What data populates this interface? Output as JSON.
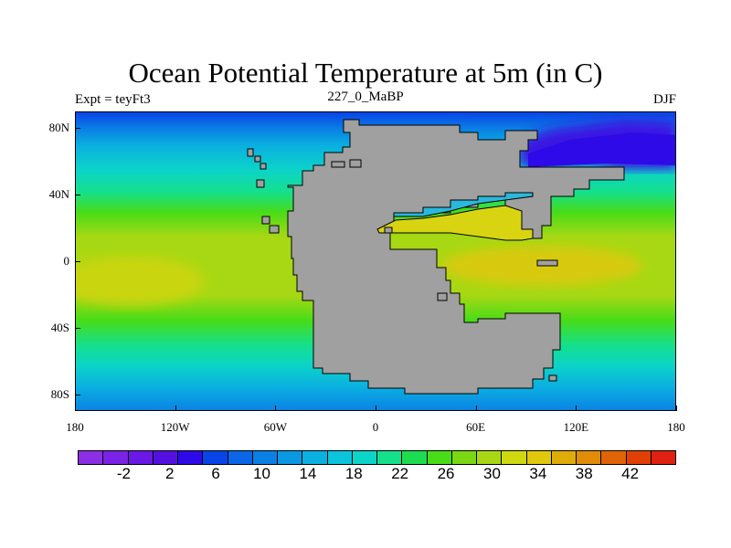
{
  "header": {
    "title": "Ocean Potential Temperature at 5m (in C)",
    "left_label": "Expt = teyFt3",
    "center_label": "227_0_MaBP",
    "right_label": "DJF"
  },
  "map": {
    "lat_labels": [
      "80N",
      "40N",
      "0",
      "40S",
      "80S"
    ],
    "lat_values": [
      80,
      40,
      0,
      -40,
      -80
    ],
    "lon_labels": [
      "180",
      "120W",
      "60W",
      "0",
      "60E",
      "120E",
      "180"
    ],
    "lon_values": [
      -180,
      -120,
      -60,
      0,
      60,
      120,
      180
    ],
    "lat_range": [
      -90,
      90
    ],
    "lon_range": [
      -180,
      180
    ],
    "land_color": "#a0a0a0",
    "ocean_bands_by_latitude": [
      {
        "lat": 90,
        "value": 6
      },
      {
        "lat": 80,
        "value": 10
      },
      {
        "lat": 70,
        "value": 14
      },
      {
        "lat": 55,
        "value": 18
      },
      {
        "lat": 42,
        "value": 22
      },
      {
        "lat": 30,
        "value": 26
      },
      {
        "lat": 15,
        "value": 30
      },
      {
        "lat": 0,
        "value": 30
      },
      {
        "lat": -20,
        "value": 30
      },
      {
        "lat": -35,
        "value": 26
      },
      {
        "lat": -50,
        "value": 22
      },
      {
        "lat": -62,
        "value": 18
      },
      {
        "lat": -75,
        "value": 14
      },
      {
        "lat": -90,
        "value": 10
      }
    ]
  },
  "colorbar": {
    "tick_labels": [
      "-2",
      "2",
      "6",
      "10",
      "14",
      "18",
      "22",
      "26",
      "30",
      "34",
      "38",
      "42"
    ],
    "tick_values": [
      -2,
      2,
      6,
      10,
      14,
      18,
      22,
      26,
      30,
      34,
      38,
      42
    ],
    "colors": [
      "#8c2ee6",
      "#7a22e6",
      "#6a18e6",
      "#5410e0",
      "#2e0ae8",
      "#0844e8",
      "#0a66e6",
      "#0a80e4",
      "#0a98e2",
      "#0ab0e0",
      "#0ac4dc",
      "#0cd4c8",
      "#14e08c",
      "#1edc50",
      "#48dc18",
      "#7ad814",
      "#a8d814",
      "#d0d810",
      "#e0c80c",
      "#e0ac08",
      "#e08c06",
      "#e06406",
      "#e04006",
      "#e02010"
    ],
    "min": -6,
    "max": 46
  }
}
